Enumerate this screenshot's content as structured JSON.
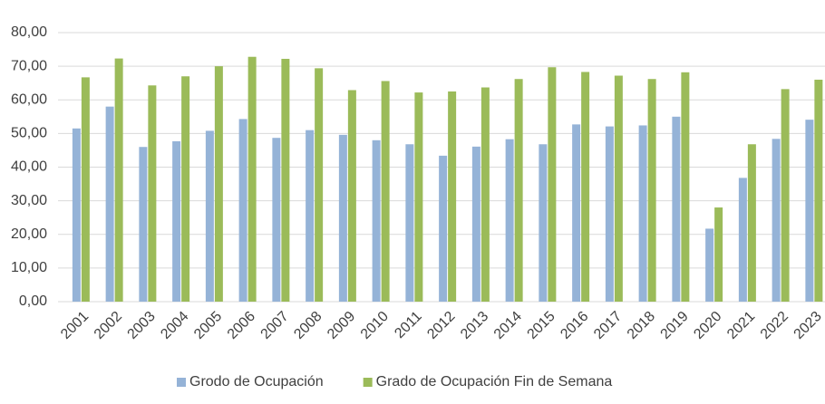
{
  "chart_data": {
    "type": "bar",
    "categories": [
      "2001",
      "2002",
      "2003",
      "2004",
      "2005",
      "2006",
      "2007",
      "2008",
      "2009",
      "2010",
      "2011",
      "2012",
      "2013",
      "2014",
      "2015",
      "2016",
      "2017",
      "2018",
      "2019",
      "2020",
      "2021",
      "2022",
      "2023"
    ],
    "series": [
      {
        "name": "Grodo de Ocupación",
        "color": "#95b3d7",
        "values": [
          51.5,
          58,
          46,
          47.7,
          50.8,
          54.3,
          48.7,
          51,
          49.6,
          48,
          46.8,
          43.4,
          46.1,
          48.3,
          46.8,
          52.7,
          52.1,
          52.4,
          55,
          21.7,
          36.8,
          48.4,
          54.1
        ]
      },
      {
        "name": "Grado de Ocupación Fin de Semana",
        "color": "#9bbb59",
        "values": [
          66.7,
          72.3,
          64.3,
          67,
          70,
          72.8,
          72.2,
          69.4,
          62.9,
          65.6,
          62.2,
          62.5,
          63.7,
          66.2,
          69.7,
          68.3,
          67.2,
          66.2,
          68.2,
          28,
          46.8,
          63.2,
          66
        ]
      }
    ],
    "ylim": [
      0,
      80
    ],
    "yticks": [
      {
        "value": 0,
        "label": "0,00"
      },
      {
        "value": 10,
        "label": "10,00"
      },
      {
        "value": 20,
        "label": "20,00"
      },
      {
        "value": 30,
        "label": "30,00"
      },
      {
        "value": 40,
        "label": "40,00"
      },
      {
        "value": 50,
        "label": "50,00"
      },
      {
        "value": 60,
        "label": "60,00"
      },
      {
        "value": 70,
        "label": "70,00"
      },
      {
        "value": 80,
        "label": "80,00"
      }
    ],
    "grid": true,
    "legend": "bottom"
  }
}
